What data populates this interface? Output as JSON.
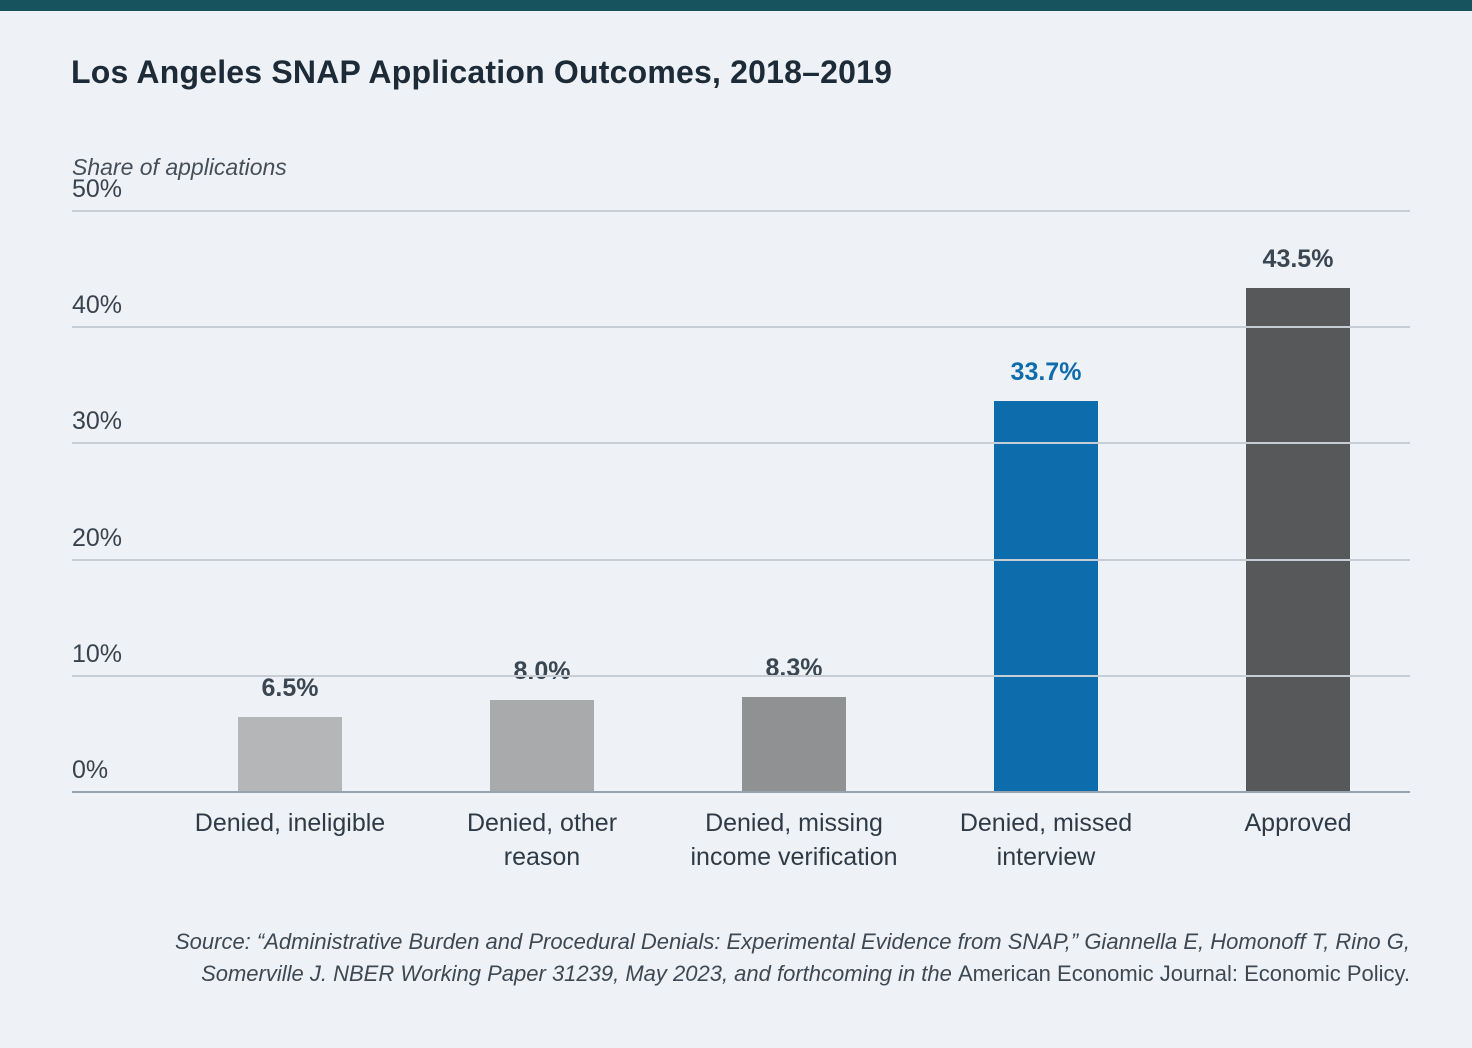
{
  "page": {
    "background_color": "#eef2f6",
    "accent_bar_color": "#17525f"
  },
  "chart_data": {
    "type": "bar",
    "title": "Los Angeles SNAP Application Outcomes, 2018–2019",
    "ylabel": "Share of applications",
    "xlabel": "",
    "categories": [
      "Denied, ineligible",
      "Denied, other reason",
      "Denied, missing income verification",
      "Denied, missed interview",
      "Approved"
    ],
    "values": [
      6.5,
      8.0,
      8.3,
      33.7,
      43.5
    ],
    "value_labels": [
      "6.5%",
      "8.0%",
      "8.3%",
      "33.7%",
      "43.5%"
    ],
    "bar_colors": [
      "#b4b6b8",
      "#a8aaac",
      "#8f9193",
      "#0d6cac",
      "#575859"
    ],
    "value_label_colors": [
      "#3a4652",
      "#3a4652",
      "#3a4652",
      "#0d6cac",
      "#3a4652"
    ],
    "ylim": [
      0,
      50
    ],
    "ytick_values": [
      50,
      40,
      30,
      20,
      10,
      0
    ],
    "ytick_labels": [
      "50%",
      "40%",
      "30%",
      "20%",
      "10%",
      "0%"
    ],
    "grid": true,
    "legend": false,
    "highlight_color": "#0d6cac"
  },
  "source": {
    "italic_text": "Source: “Administrative Burden and Procedural Denials: Experimental Evidence from SNAP,” Giannella E, Homonoff T, Rino G, Somerville J. NBER Working Paper 31239, May 2023, and forthcoming in the ",
    "roman_text": "American Economic Journal: Economic Policy."
  }
}
